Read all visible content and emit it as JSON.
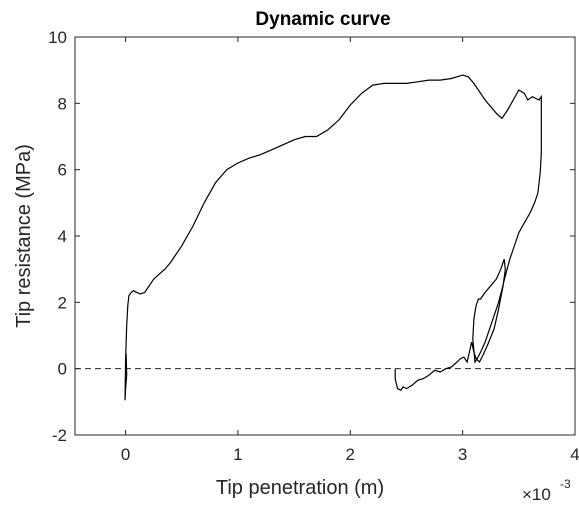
{
  "chart_data": {
    "type": "line",
    "title": "Dynamic curve",
    "xlabel": "Tip penetration (m)",
    "ylabel": "Tip resistance (MPa)",
    "x_exponent_base": "×10",
    "x_exponent_power": "-3",
    "xlim": [
      -0.45,
      4
    ],
    "ylim": [
      -2,
      10
    ],
    "x_ticks": [
      0,
      1,
      2,
      3,
      4
    ],
    "y_ticks": [
      -2,
      0,
      2,
      4,
      6,
      8,
      10
    ],
    "x_tick_labels": [
      "0",
      "1",
      "2",
      "3",
      "4"
    ],
    "y_tick_labels": [
      "-2",
      "0",
      "2",
      "4",
      "6",
      "8",
      "10"
    ],
    "grid": false,
    "legend": "none",
    "colors": {
      "curve": "#000000",
      "zero_line": "#000000",
      "axes": "#262626"
    },
    "reference_line": {
      "y": 0,
      "style": "dashed"
    },
    "series": [
      {
        "x": [
          0,
          0.005,
          0.01,
          0.0,
          -0.005,
          0.0,
          0.01,
          0.02,
          0.03,
          0.05,
          0.07,
          0.1,
          0.13,
          0.17,
          0.21,
          0.25,
          0.3,
          0.35,
          0.4,
          0.5,
          0.6,
          0.7,
          0.8,
          0.9,
          1.0,
          1.1,
          1.2,
          1.3,
          1.4,
          1.5,
          1.6,
          1.7,
          1.8,
          1.9,
          2.0,
          2.1,
          2.2,
          2.3,
          2.4,
          2.5,
          2.6,
          2.7,
          2.8,
          2.9,
          2.95,
          3.0,
          3.05,
          3.1,
          3.2,
          3.3,
          3.35,
          3.4,
          3.45,
          3.5,
          3.55,
          3.58,
          3.62,
          3.65,
          3.68,
          3.7,
          3.7,
          3.7,
          3.69,
          3.67,
          3.64,
          3.6,
          3.55,
          3.5,
          3.45,
          3.42,
          3.38,
          3.35,
          3.32,
          3.28,
          3.24,
          3.2,
          3.16,
          3.13,
          3.11,
          3.09,
          3.1,
          3.12,
          3.14,
          3.16,
          3.2,
          3.25,
          3.3,
          3.34,
          3.37,
          3.38,
          3.36,
          3.32,
          3.28,
          3.22,
          3.18,
          3.15,
          3.12,
          3.1,
          3.08,
          3.06,
          3.04,
          3.01,
          2.98,
          2.95,
          2.9,
          2.85,
          2.8,
          2.75,
          2.7,
          2.65,
          2.6,
          2.55,
          2.5,
          2.47,
          2.45,
          2.42,
          2.4,
          2.4
        ],
        "y": [
          0,
          0.45,
          -0.2,
          -0.6,
          -0.95,
          0.3,
          1.3,
          1.9,
          2.2,
          2.3,
          2.35,
          2.3,
          2.25,
          2.3,
          2.5,
          2.7,
          2.85,
          3.0,
          3.2,
          3.7,
          4.3,
          5.0,
          5.6,
          6.0,
          6.2,
          6.35,
          6.45,
          6.6,
          6.75,
          6.9,
          7.0,
          7.0,
          7.2,
          7.5,
          7.95,
          8.3,
          8.55,
          8.6,
          8.6,
          8.6,
          8.65,
          8.7,
          8.7,
          8.75,
          8.8,
          8.85,
          8.8,
          8.6,
          8.1,
          7.7,
          7.55,
          7.8,
          8.1,
          8.4,
          8.3,
          8.1,
          8.2,
          8.15,
          8.1,
          8.2,
          7.5,
          6.5,
          5.9,
          5.3,
          5.0,
          4.7,
          4.4,
          4.1,
          3.6,
          3.3,
          2.8,
          2.4,
          2.0,
          1.6,
          1.2,
          0.8,
          0.5,
          0.3,
          0.2,
          0.9,
          1.5,
          1.9,
          2.1,
          2.1,
          2.3,
          2.5,
          2.7,
          3.0,
          3.3,
          3.0,
          2.5,
          1.8,
          1.2,
          0.7,
          0.4,
          0.2,
          0.3,
          0.5,
          0.8,
          0.5,
          0.2,
          0.35,
          0.3,
          0.2,
          0.05,
          0.0,
          -0.1,
          -0.05,
          -0.2,
          -0.3,
          -0.35,
          -0.5,
          -0.6,
          -0.55,
          -0.65,
          -0.6,
          -0.3,
          0.0
        ]
      }
    ]
  }
}
